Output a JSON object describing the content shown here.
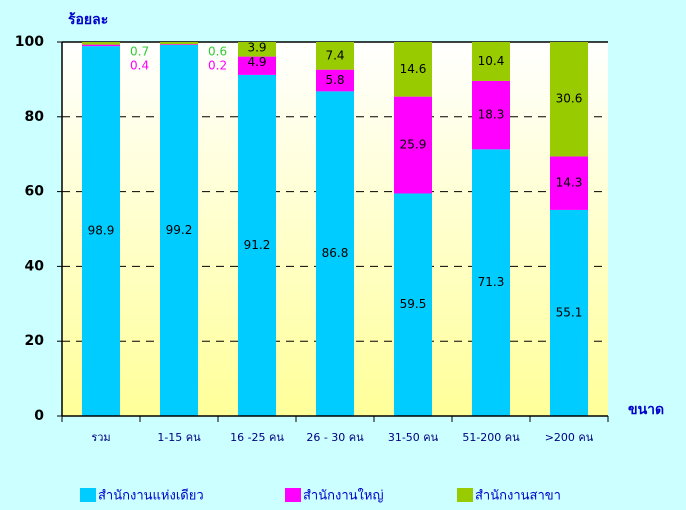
{
  "chart_data": {
    "type": "stacked_bar",
    "y_label": "ร้อยละ",
    "x_label": "ขนาด",
    "categories": [
      "รวม",
      "1-15 คน",
      "16 -25 คน",
      "26 - 30 คน",
      "31-50 คน",
      "51-200 คน",
      ">200 คน"
    ],
    "series": [
      {
        "name": "สำนักงานแห่งเดียว",
        "color": "#00ccff",
        "values": [
          98.9,
          99.2,
          91.2,
          86.8,
          59.5,
          71.3,
          55.1
        ]
      },
      {
        "name": "สำนักงานใหญ่",
        "color": "#ff00ff",
        "values": [
          0.4,
          0.2,
          4.9,
          5.8,
          25.9,
          18.3,
          14.3
        ]
      },
      {
        "name": "สำนักงานสาขา",
        "color": "#99cc00",
        "values": [
          0.7,
          0.6,
          3.9,
          7.4,
          14.6,
          10.4,
          30.6
        ]
      }
    ],
    "ylim": [
      0,
      100
    ],
    "yticks": [
      0,
      20,
      40,
      60,
      80,
      100
    ],
    "grid": true
  }
}
